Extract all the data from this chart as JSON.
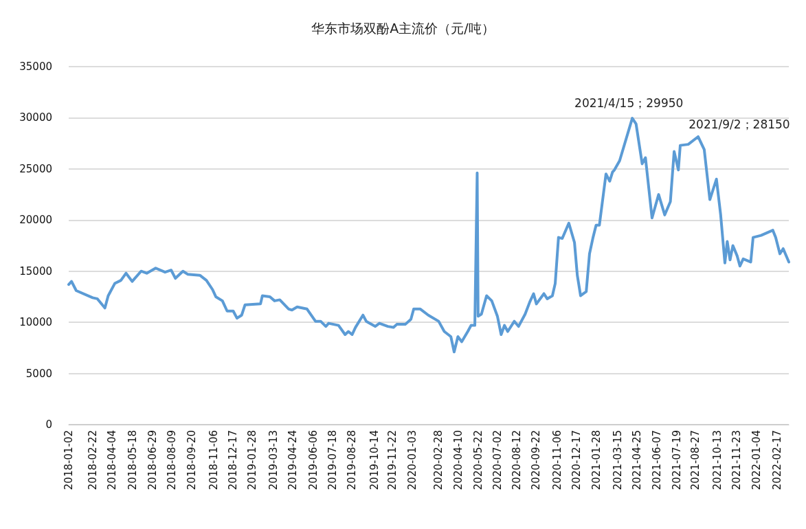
{
  "chart_data": {
    "type": "line",
    "title": "华东市场双酚A主流价（元/吨）",
    "x": [
      "2018-01-02",
      "2018-01-08",
      "2018-01-18",
      "2018-02-22",
      "2018-03-04",
      "2018-03-20",
      "2018-03-27",
      "2018-04-10",
      "2018-04-23",
      "2018-05-04",
      "2018-05-17",
      "2018-06-05",
      "2018-06-17",
      "2018-07-06",
      "2018-07-26",
      "2018-08-08",
      "2018-08-17",
      "2018-09-02",
      "2018-09-12",
      "2018-10-08",
      "2018-10-22",
      "2018-11-04",
      "2018-11-11",
      "2018-11-25",
      "2018-12-05",
      "2018-12-18",
      "2018-12-26",
      "2019-01-05",
      "2019-01-12",
      "2019-02-14",
      "2019-02-18",
      "2019-03-06",
      "2019-03-16",
      "2019-03-27",
      "2019-04-15",
      "2019-04-22",
      "2019-05-03",
      "2019-05-24",
      "2019-06-11",
      "2019-06-22",
      "2019-07-03",
      "2019-07-09",
      "2019-07-30",
      "2019-08-13",
      "2019-08-20",
      "2019-08-28",
      "2019-09-04",
      "2019-09-20",
      "2019-09-27",
      "2019-10-16",
      "2019-10-25",
      "2019-11-12",
      "2019-11-24",
      "2019-12-01",
      "2019-12-19",
      "2019-12-31",
      "2020-01-06",
      "2020-01-20",
      "2020-02-06",
      "2020-02-28",
      "2020-03-11",
      "2020-03-25",
      "2020-04-01",
      "2020-04-09",
      "2020-04-17",
      "2020-04-30",
      "2020-05-07",
      "2020-05-15",
      "2020-05-20",
      "2020-05-22",
      "2020-05-29",
      "2020-06-09",
      "2020-06-20",
      "2020-07-02",
      "2020-07-10",
      "2020-07-17",
      "2020-07-24",
      "2020-08-07",
      "2020-08-16",
      "2020-08-30",
      "2020-09-09",
      "2020-09-17",
      "2020-09-23",
      "2020-10-09",
      "2020-10-16",
      "2020-10-27",
      "2020-11-02",
      "2020-11-09",
      "2020-11-17",
      "2020-12-01",
      "2020-12-13",
      "2020-12-19",
      "2020-12-26",
      "2021-01-07",
      "2021-01-14",
      "2021-01-21",
      "2021-01-28",
      "2021-02-04",
      "2021-02-18",
      "2021-02-26",
      "2021-03-04",
      "2021-03-08",
      "2021-03-19",
      "2021-04-15",
      "2021-04-23",
      "2021-05-06",
      "2021-05-13",
      "2021-05-27",
      "2021-06-10",
      "2021-06-23",
      "2021-07-05",
      "2021-07-13",
      "2021-07-22",
      "2021-07-26",
      "2021-08-12",
      "2021-09-02",
      "2021-09-15",
      "2021-09-27",
      "2021-10-11",
      "2021-10-20",
      "2021-10-29",
      "2021-11-03",
      "2021-11-09",
      "2021-11-15",
      "2021-11-24",
      "2021-11-30",
      "2021-12-07",
      "2021-12-23",
      "2021-12-28",
      "2022-01-14",
      "2022-02-08",
      "2022-02-14",
      "2022-02-23",
      "2022-03-02",
      "2022-03-14"
    ],
    "series": [
      {
        "color": "#5b9bd5",
        "values": [
          13700,
          14000,
          13100,
          12400,
          12300,
          11400,
          12600,
          13800,
          14100,
          14800,
          14000,
          15000,
          14800,
          15300,
          14900,
          15100,
          14300,
          15000,
          14700,
          14600,
          14100,
          13200,
          12500,
          12100,
          11100,
          11100,
          10400,
          10700,
          11700,
          11800,
          12600,
          12500,
          12100,
          12200,
          11300,
          11200,
          11500,
          11300,
          10100,
          10100,
          9600,
          9900,
          9700,
          8800,
          9100,
          8800,
          9500,
          10700,
          10100,
          9600,
          9900,
          9600,
          9500,
          9800,
          9800,
          10300,
          11300,
          11300,
          10700,
          10100,
          9100,
          8600,
          7100,
          8600,
          8100,
          9100,
          9700,
          9700,
          24600,
          10600,
          10800,
          12600,
          12100,
          10600,
          8800,
          9700,
          9100,
          10100,
          9600,
          10800,
          12000,
          12800,
          11800,
          12800,
          12300,
          12600,
          13800,
          18300,
          18200,
          19700,
          17800,
          14600,
          12600,
          13000,
          16700,
          18200,
          19500,
          19500,
          24500,
          23800,
          24700,
          24900,
          25800,
          29950,
          29400,
          25500,
          26100,
          20200,
          22500,
          20500,
          21800,
          26700,
          24900,
          27300,
          27400,
          28150,
          26900,
          22000,
          24000,
          20500,
          15800,
          17900,
          16100,
          17500,
          16500,
          15500,
          16200,
          15900,
          18300,
          18500,
          19000,
          18300,
          16700,
          17200,
          15900
        ]
      }
    ],
    "xlim": [
      "2018-01-02",
      "2022-03-14"
    ],
    "xticks": [
      "2018-01-02",
      "2018-02-22",
      "2018-04-04",
      "2018-05-18",
      "2018-06-29",
      "2018-08-09",
      "2018-09-20",
      "2018-11-06",
      "2018-12-17",
      "2019-01-28",
      "2019-03-13",
      "2019-04-24",
      "2019-06-06",
      "2019-07-18",
      "2019-08-28",
      "2019-10-14",
      "2019-11-22",
      "2020-01-03",
      "2020-02-28",
      "2020-04-10",
      "2020-05-22",
      "2020-07-02",
      "2020-08-12",
      "2020-09-22",
      "2020-11-06",
      "2020-12-17",
      "2021-01-28",
      "2021-03-15",
      "2021-04-25",
      "2021-06-07",
      "2021-07-19",
      "2021-08-27",
      "2021-10-13",
      "2021-11-23",
      "2022-01-04",
      "2022-02-17"
    ],
    "ylim": [
      0,
      35000
    ],
    "yticks": [
      0,
      5000,
      10000,
      15000,
      20000,
      25000,
      30000,
      35000
    ],
    "grid": "y",
    "marker": "none",
    "line_style": "solid",
    "annotations": [
      {
        "text": "2021/4/15；29950",
        "x": "2021-04-15",
        "y": 29950
      },
      {
        "text": "2021/9/2；28150",
        "x": "2021-09-02",
        "y": 28150
      }
    ]
  }
}
